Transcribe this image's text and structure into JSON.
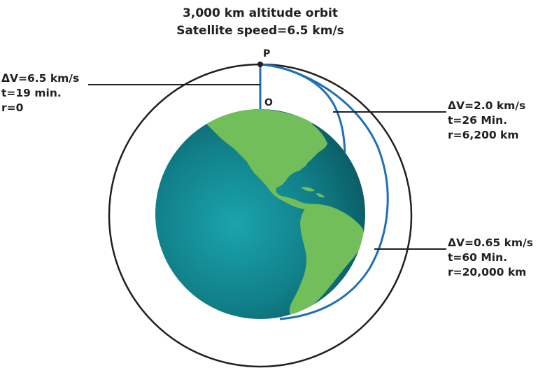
{
  "title": {
    "line1": "3,000 km altitude orbit",
    "line2": "Satellite speed=6.5 km/s"
  },
  "points": {
    "p": "P",
    "o": "O"
  },
  "trajectories": [
    {
      "id": "radial",
      "dv": "ΔV=6.5 km/s",
      "t": "t=19 min.",
      "r": "r=0"
    },
    {
      "id": "medium",
      "dv": "ΔV=2.0 km/s",
      "t": "t=26 Min.",
      "r": "r=6,200 km"
    },
    {
      "id": "long",
      "dv": "ΔV=0.65 km/s",
      "t": "t=60 Min.",
      "r": "r=20,000 km"
    }
  ],
  "colors": {
    "orbit": "#231f20",
    "trajectory": "#1e6fb5",
    "ocean_center": "#1aa4ad",
    "ocean_edge": "#0a5b63",
    "land": "#72be5a",
    "leader": "#231f20"
  }
}
